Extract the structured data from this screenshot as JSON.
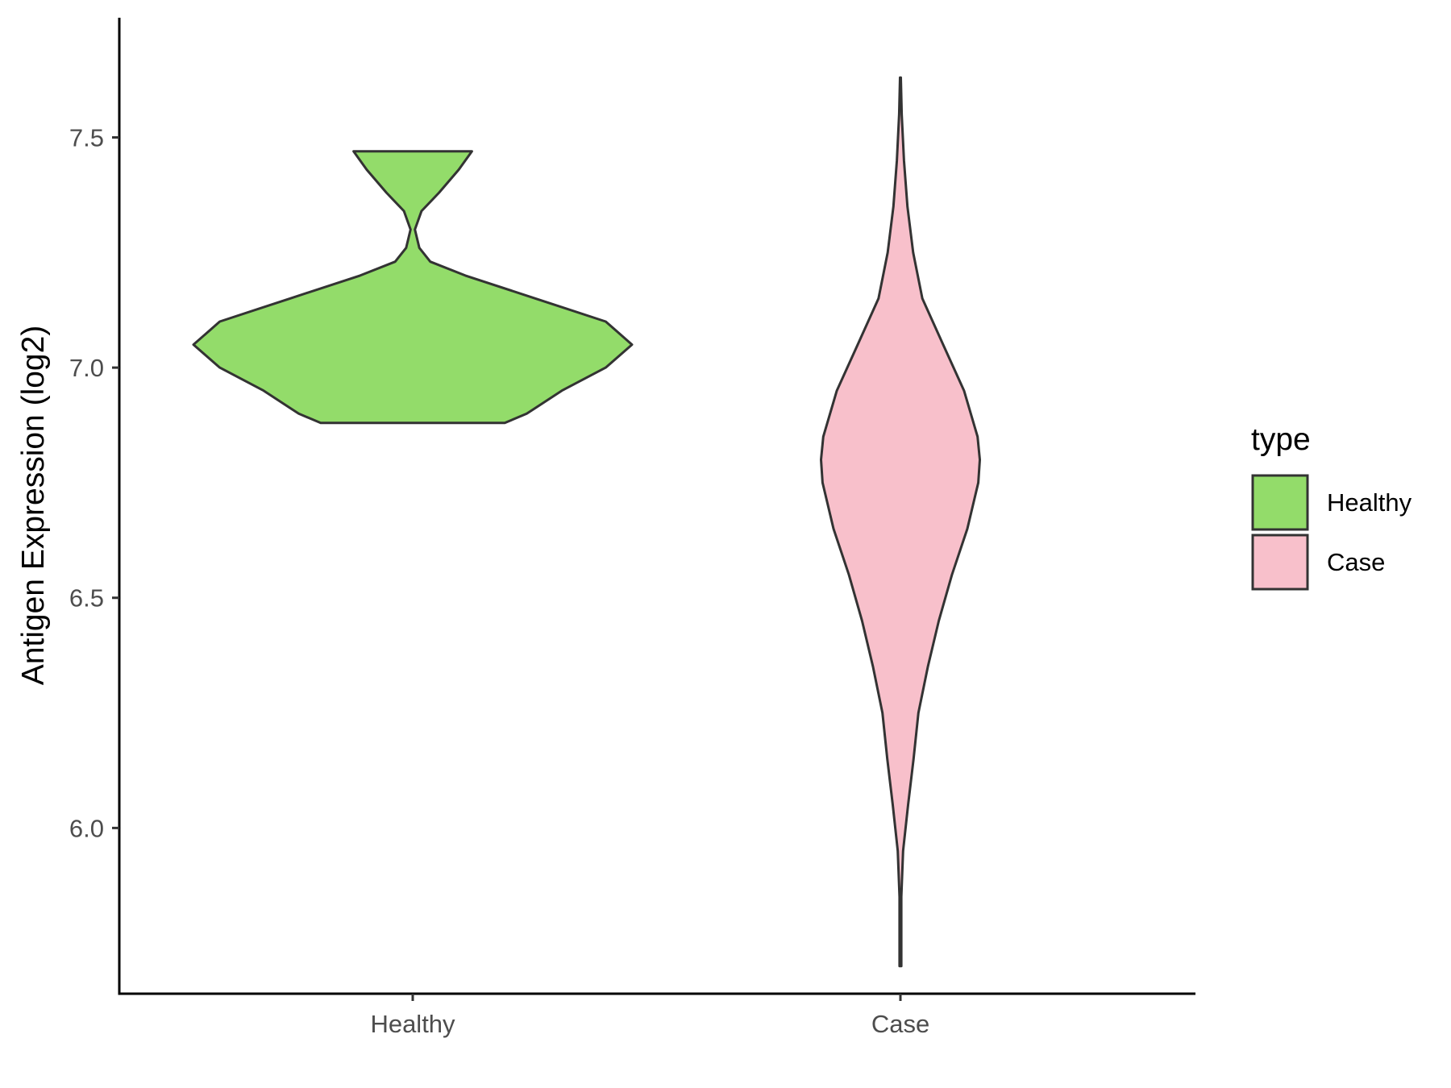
{
  "chart_data": {
    "type": "violin",
    "title": "",
    "xlabel": "",
    "ylabel": "Antigen Expression (log2)",
    "ylim": [
      5.64,
      7.76
    ],
    "yticks": [
      6.0,
      6.5,
      7.0,
      7.5
    ],
    "ytick_labels": [
      "6.0",
      "6.5",
      "7.0",
      "7.5"
    ],
    "categories": [
      "Healthy",
      "Case"
    ],
    "grid": false,
    "legend": {
      "title": "type",
      "position": "right",
      "entries": [
        {
          "label": "Healthy",
          "color": "#93dc6a"
        },
        {
          "label": "Case",
          "color": "#f8c0cb"
        }
      ]
    },
    "series": [
      {
        "category": "Healthy",
        "color": "#93dc6a",
        "profile": [
          [
            6.88,
            0.42
          ],
          [
            6.9,
            0.52
          ],
          [
            6.95,
            0.68
          ],
          [
            7.0,
            0.88
          ],
          [
            7.05,
            1.0
          ],
          [
            7.1,
            0.88
          ],
          [
            7.15,
            0.56
          ],
          [
            7.2,
            0.24
          ],
          [
            7.23,
            0.08
          ],
          [
            7.26,
            0.03
          ],
          [
            7.3,
            0.01
          ],
          [
            7.34,
            0.04
          ],
          [
            7.38,
            0.12
          ],
          [
            7.43,
            0.21
          ],
          [
            7.47,
            0.27
          ]
        ]
      },
      {
        "category": "Case",
        "color": "#f8c0cb",
        "profile": [
          [
            5.7,
            0.004
          ],
          [
            5.85,
            0.004
          ],
          [
            5.95,
            0.012
          ],
          [
            6.05,
            0.035
          ],
          [
            6.15,
            0.06
          ],
          [
            6.25,
            0.082
          ],
          [
            6.35,
            0.125
          ],
          [
            6.45,
            0.175
          ],
          [
            6.55,
            0.235
          ],
          [
            6.65,
            0.305
          ],
          [
            6.75,
            0.355
          ],
          [
            6.8,
            0.362
          ],
          [
            6.85,
            0.352
          ],
          [
            6.95,
            0.29
          ],
          [
            7.05,
            0.195
          ],
          [
            7.15,
            0.1
          ],
          [
            7.25,
            0.058
          ],
          [
            7.35,
            0.032
          ],
          [
            7.45,
            0.016
          ],
          [
            7.55,
            0.006
          ],
          [
            7.63,
            0.002
          ]
        ]
      }
    ]
  }
}
